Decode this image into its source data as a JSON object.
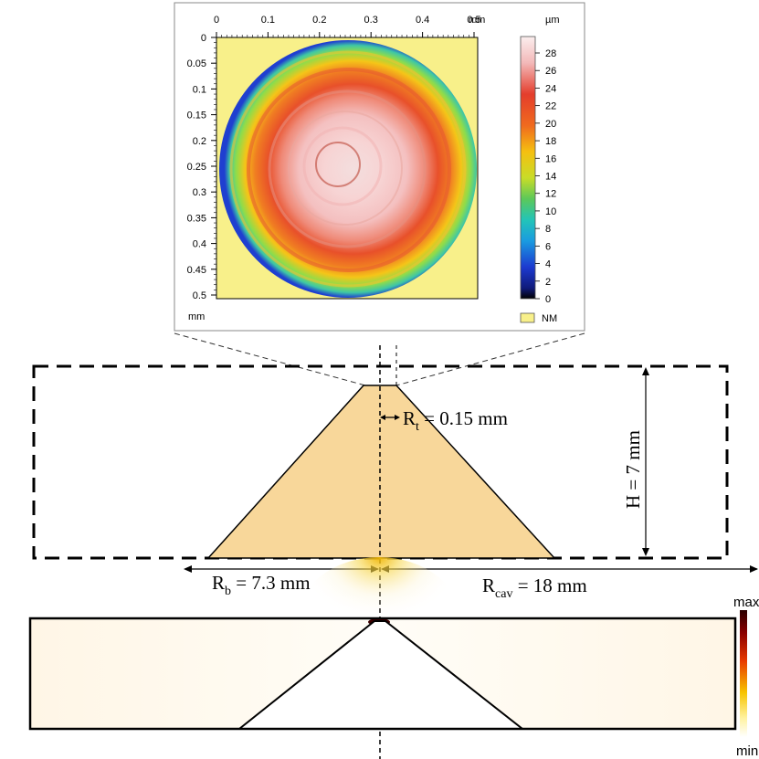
{
  "profilometry": {
    "x_axis_ticks": [
      "0",
      "0.1",
      "0.2",
      "0.3",
      "0.4",
      "0.5"
    ],
    "x_axis_unit": "mm",
    "y_axis_ticks": [
      "0",
      "0.05",
      "0.1",
      "0.15",
      "0.2",
      "0.25",
      "0.3",
      "0.35",
      "0.4",
      "0.45",
      "0.5"
    ],
    "y_axis_unit": "mm",
    "colorbar_unit": "µm",
    "colorbar_ticks": [
      "28",
      "26",
      "24",
      "22",
      "20",
      "18",
      "16",
      "14",
      "12",
      "10",
      "8",
      "6",
      "4",
      "2",
      "0"
    ],
    "nm_legend": "NM",
    "colors": {
      "background_nm": "#f8f08a",
      "peak": "#f7dada",
      "high": "#e8502a",
      "mid": "#f5c518",
      "low_mid": "#3ec7a5",
      "low": "#1f3fd0"
    }
  },
  "geometry": {
    "rt_label": {
      "main": "R",
      "sub": "t",
      "value": " = 0.15 mm"
    },
    "h_label": "H = 7 mm",
    "rb_label": {
      "main": "R",
      "sub": "b",
      "value": " = 7.3 mm"
    },
    "rcav_label": {
      "main": "R",
      "sub": "cav",
      "value": " = 18 mm"
    },
    "colors": {
      "cone_fill": "#f8d79a"
    }
  },
  "field": {
    "scale_max": "max",
    "scale_min": "min",
    "colors": {
      "hot": "#3a0000",
      "warm": "#f5b800",
      "cool": "#ffffff"
    }
  }
}
